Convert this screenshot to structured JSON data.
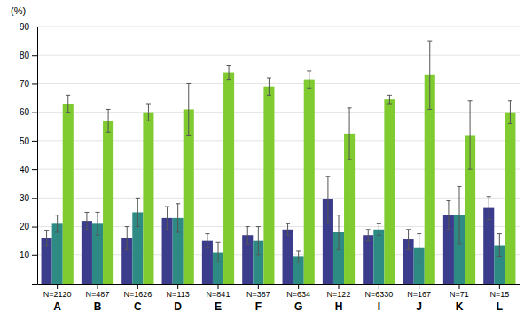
{
  "chart_data": {
    "type": "bar",
    "y_label": "(%)",
    "categories": [
      "A",
      "B",
      "C",
      "D",
      "E",
      "F",
      "G",
      "H",
      "I",
      "J",
      "K",
      "L"
    ],
    "n_labels": [
      "N=2120",
      "N=487",
      "N=1626",
      "N=113",
      "N=841",
      "N=387",
      "N=634",
      "N=122",
      "N=6330",
      "N=167",
      "N=71",
      "N=15"
    ],
    "series": [
      {
        "color": "#3c3c8c",
        "values": [
          16,
          22,
          16,
          23,
          15,
          17,
          19,
          29.5,
          17,
          15.5,
          24,
          26.5
        ],
        "errors": [
          2.5,
          3,
          4,
          4,
          2.5,
          3,
          2,
          8,
          2,
          3.5,
          5,
          4
        ]
      },
      {
        "color": "#2e8b84",
        "values": [
          21,
          21,
          25,
          23,
          11,
          15,
          9.5,
          18,
          19,
          12.5,
          24,
          13.5
        ],
        "errors": [
          3,
          4,
          5,
          5,
          3.5,
          5,
          2,
          6,
          2,
          5,
          10,
          4
        ]
      },
      {
        "color": "#80cc30",
        "values": [
          63,
          57,
          60,
          61,
          74,
          69,
          71.5,
          52.5,
          64.5,
          73,
          52,
          60
        ],
        "errors": [
          3,
          4,
          3,
          9,
          2.5,
          3,
          3,
          9,
          1.5,
          12,
          12,
          4
        ]
      }
    ],
    "ylim": [
      0,
      90
    ],
    "yticks": [
      10,
      20,
      30,
      40,
      50,
      60,
      70,
      80,
      90
    ],
    "grid": true
  }
}
